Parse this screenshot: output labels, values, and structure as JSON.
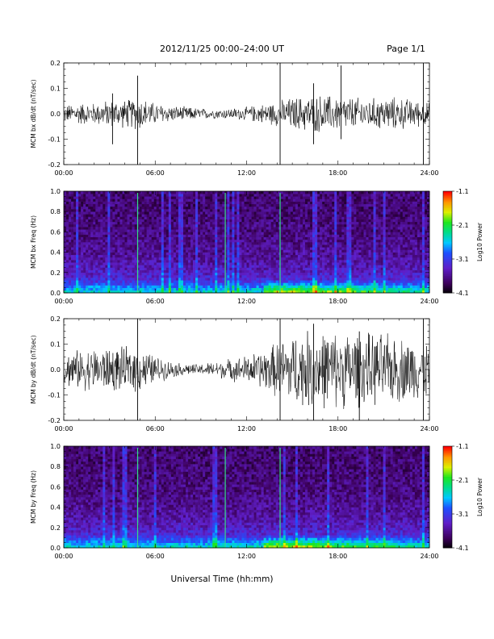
{
  "header": {
    "title": "2012/11/25  00:00–24:00 UT",
    "page": "Page 1/1"
  },
  "footer": {
    "xlabel": "Universal Time (hh:mm)"
  },
  "chart_data": [
    {
      "type": "line",
      "panel": 1,
      "ylabel": "MCM bx dB/dt (nT/sec)",
      "xlim": [
        0,
        24
      ],
      "ylim": [
        -0.2,
        0.2
      ],
      "x_ticks": [
        "00:00",
        "06:00",
        "12:00",
        "18:00",
        "24:00"
      ],
      "y_ticks": [
        "-0.2",
        "-0.1",
        "0.0",
        "0.1",
        "0.2"
      ],
      "envelope": {
        "x": [
          0,
          1,
          2,
          3,
          4,
          5,
          6,
          7,
          8,
          9,
          10,
          11,
          12,
          13,
          14,
          15,
          16,
          17,
          18,
          19,
          20,
          21,
          22,
          23,
          24
        ],
        "amplitude": [
          0.03,
          0.04,
          0.04,
          0.05,
          0.05,
          0.06,
          0.04,
          0.03,
          0.025,
          0.02,
          0.018,
          0.02,
          0.025,
          0.035,
          0.045,
          0.06,
          0.065,
          0.07,
          0.065,
          0.06,
          0.055,
          0.06,
          0.06,
          0.05,
          0.04
        ]
      },
      "spikes": [
        {
          "x": 3.2,
          "min": -0.12,
          "max": 0.08
        },
        {
          "x": 4.85,
          "min": -0.21,
          "max": 0.15
        },
        {
          "x": 14.2,
          "min": -0.2,
          "max": 0.21
        },
        {
          "x": 16.4,
          "min": -0.12,
          "max": 0.12
        },
        {
          "x": 18.2,
          "min": -0.1,
          "max": 0.19
        },
        {
          "x": 23.6,
          "min": -0.2,
          "max": 0.21
        }
      ]
    },
    {
      "type": "heatmap",
      "panel": 2,
      "ylabel": "MCM bx Freq (Hz)",
      "xlim": [
        0,
        24
      ],
      "ylim": [
        0.0,
        1.0
      ],
      "x_ticks": [
        "00:00",
        "06:00",
        "12:00",
        "18:00",
        "24:00"
      ],
      "y_ticks": [
        "0.0",
        "0.2",
        "0.4",
        "0.6",
        "0.8",
        "1.0"
      ],
      "colorbar": {
        "label": "Log10 Power",
        "ticks": [
          "-1.1",
          "-2.1",
          "-3.1",
          "-4.1"
        ],
        "range": [
          -4.1,
          -1.1
        ]
      },
      "bright_lines": [
        4.85,
        10.6,
        14.2
      ]
    },
    {
      "type": "line",
      "panel": 3,
      "ylabel": "MCM by dB/dt (nT/sec)",
      "xlim": [
        0,
        24
      ],
      "ylim": [
        -0.2,
        0.2
      ],
      "x_ticks": [
        "00:00",
        "06:00",
        "12:00",
        "18:00",
        "24:00"
      ],
      "y_ticks": [
        "-0.2",
        "-0.1",
        "0.0",
        "0.1",
        "0.2"
      ],
      "envelope": {
        "x": [
          0,
          1,
          2,
          3,
          4,
          5,
          6,
          7,
          8,
          9,
          10,
          11,
          12,
          13,
          14,
          15,
          16,
          17,
          18,
          19,
          20,
          21,
          22,
          23,
          24
        ],
        "amplitude": [
          0.06,
          0.07,
          0.08,
          0.08,
          0.08,
          0.08,
          0.05,
          0.03,
          0.02,
          0.02,
          0.03,
          0.04,
          0.05,
          0.07,
          0.1,
          0.13,
          0.14,
          0.14,
          0.14,
          0.14,
          0.13,
          0.13,
          0.12,
          0.11,
          0.1
        ]
      },
      "spikes": [
        {
          "x": 4.85,
          "min": -0.21,
          "max": 0.21
        },
        {
          "x": 14.2,
          "min": -0.21,
          "max": 0.21
        },
        {
          "x": 16.4,
          "min": -0.21,
          "max": 0.18
        },
        {
          "x": 19.4,
          "min": -0.21,
          "max": 0.15
        },
        {
          "x": 23.6,
          "min": -0.21,
          "max": 0.21
        }
      ]
    },
    {
      "type": "heatmap",
      "panel": 4,
      "ylabel": "MCM by Freq (Hz)",
      "xlim": [
        0,
        24
      ],
      "ylim": [
        0.0,
        1.0
      ],
      "x_ticks": [
        "00:00",
        "06:00",
        "12:00",
        "18:00",
        "24:00"
      ],
      "y_ticks": [
        "0.0",
        "0.2",
        "0.4",
        "0.6",
        "0.8",
        "1.0"
      ],
      "colorbar": {
        "label": "Log10 Power",
        "ticks": [
          "-1.1",
          "-2.1",
          "-3.1",
          "-4.1"
        ],
        "range": [
          -4.1,
          -1.1
        ]
      },
      "bright_lines": [
        4.85,
        10.6,
        14.2
      ]
    }
  ]
}
